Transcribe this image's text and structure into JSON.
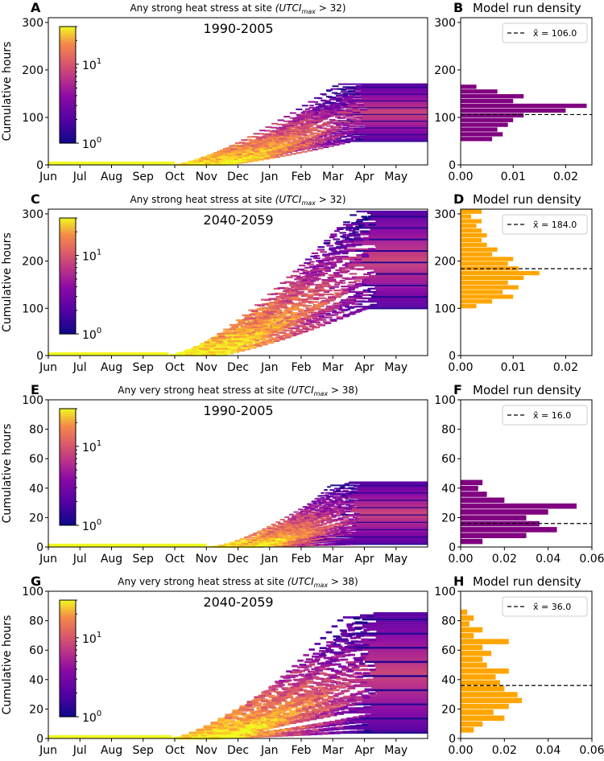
{
  "chart_data": [
    {
      "type": "heatmap",
      "panel": "A",
      "title": "Any strong heat stress at site",
      "title_math": "(UTCI",
      "title_sub": "max",
      "title_tail": " > 32)",
      "period": "1990-2005",
      "ylabel": "Cumulative hours",
      "xlabel": "",
      "ylim": [
        0,
        310
      ],
      "yticks": [
        0,
        100,
        200,
        300
      ],
      "months": [
        "Jun",
        "Jul",
        "Aug",
        "Sep",
        "Oct",
        "Nov",
        "Dec",
        "Jan",
        "Feb",
        "Mar",
        "Apr",
        "May"
      ],
      "colorbar": {
        "scale": "log",
        "ticks": [
          "10",
          "10"
        ],
        "exponents": [
          "0",
          "1"
        ],
        "range": [
          1,
          30
        ]
      },
      "onset_month": 4.0,
      "plateau_month": 9.5,
      "final_range": [
        50,
        170
      ]
    },
    {
      "type": "bar",
      "panel": "B",
      "title": "Model run density",
      "color": "#800080",
      "legend": "x̃ = 106.0",
      "median": 106.0,
      "ylim": [
        0,
        310
      ],
      "yticks": [
        0,
        100,
        200,
        300
      ],
      "xlim": [
        0,
        0.025
      ],
      "xticks": [
        0,
        0.01,
        0.02
      ],
      "xticklabels": [
        "0.00",
        "0.01",
        "0.02"
      ],
      "bins": [
        50,
        60,
        70,
        80,
        90,
        100,
        110,
        120,
        130,
        140,
        150,
        160
      ],
      "values": [
        0.006,
        0.008,
        0.007,
        0.009,
        0.01,
        0.012,
        0.02,
        0.024,
        0.01,
        0.012,
        0.007,
        0.003
      ]
    },
    {
      "type": "heatmap",
      "panel": "C",
      "title": "Any strong heat stress at site",
      "title_math": "(UTCI",
      "title_sub": "max",
      "title_tail": " > 32)",
      "period": "2040-2059",
      "ylabel": "Cumulative hours",
      "xlabel": "",
      "ylim": [
        0,
        310
      ],
      "yticks": [
        0,
        100,
        200,
        300
      ],
      "months": [
        "Jun",
        "Jul",
        "Aug",
        "Sep",
        "Oct",
        "Nov",
        "Dec",
        "Jan",
        "Feb",
        "Mar",
        "Apr",
        "May"
      ],
      "colorbar": {
        "scale": "log",
        "ticks": [
          "10",
          "10"
        ],
        "exponents": [
          "0",
          "1"
        ],
        "range": [
          1,
          30
        ]
      },
      "onset_month": 3.8,
      "plateau_month": 9.8,
      "final_range": [
        100,
        305
      ]
    },
    {
      "type": "bar",
      "panel": "D",
      "title": "Model run density",
      "color": "#ffa500",
      "legend": "x̃ = 184.0",
      "median": 184.0,
      "ylim": [
        0,
        310
      ],
      "yticks": [
        0,
        100,
        200,
        300
      ],
      "xlim": [
        0,
        0.025
      ],
      "xticks": [
        0,
        0.01,
        0.02
      ],
      "xticklabels": [
        "0.00",
        "0.01",
        "0.02"
      ],
      "bins": [
        100,
        110,
        120,
        130,
        140,
        150,
        160,
        170,
        180,
        190,
        200,
        210,
        220,
        230,
        240,
        250,
        260,
        270,
        280,
        290,
        300
      ],
      "values": [
        0.003,
        0.006,
        0.01,
        0.008,
        0.011,
        0.009,
        0.012,
        0.015,
        0.011,
        0.009,
        0.01,
        0.006,
        0.007,
        0.005,
        0.004,
        0.005,
        0.004,
        0.003,
        0.004,
        0.002,
        0.004
      ]
    },
    {
      "type": "heatmap",
      "panel": "E",
      "title": "Any very strong heat stress at site",
      "title_math": "(UTCI",
      "title_sub": "max",
      "title_tail": " > 38)",
      "period": "1990-2005",
      "ylabel": "Cumulative hours",
      "xlabel": "",
      "ylim": [
        0,
        100
      ],
      "yticks": [
        0,
        20,
        40,
        60,
        80,
        100
      ],
      "months": [
        "Jun",
        "Jul",
        "Aug",
        "Sep",
        "Oct",
        "Nov",
        "Dec",
        "Jan",
        "Feb",
        "Mar",
        "Apr",
        "May"
      ],
      "colorbar": {
        "scale": "log",
        "ticks": [
          "10",
          "10"
        ],
        "exponents": [
          "0",
          "1"
        ],
        "range": [
          1,
          30
        ]
      },
      "onset_month": 5.0,
      "plateau_month": 9.3,
      "final_range": [
        2,
        44
      ]
    },
    {
      "type": "bar",
      "panel": "F",
      "title": "Model run density",
      "color": "#800080",
      "legend": "x̃ = 16.0",
      "median": 16.0,
      "ylim": [
        0,
        100
      ],
      "yticks": [
        0,
        20,
        40,
        60,
        80,
        100
      ],
      "xlim": [
        0,
        0.06
      ],
      "xticks": [
        0,
        0.02,
        0.04,
        0.06
      ],
      "xticklabels": [
        "0.00",
        "0.02",
        "0.04",
        "0.06"
      ],
      "bins": [
        2,
        6,
        10,
        14,
        18,
        22,
        26,
        30,
        34,
        38,
        42
      ],
      "values": [
        0.01,
        0.03,
        0.044,
        0.036,
        0.03,
        0.04,
        0.053,
        0.02,
        0.012,
        0.008,
        0.01
      ]
    },
    {
      "type": "heatmap",
      "panel": "G",
      "title": "Any very strong heat stress at site",
      "title_math": "(UTCI",
      "title_sub": "max",
      "title_tail": " > 38)",
      "period": "2040-2059",
      "ylabel": "Cumulative hours",
      "xlabel": "",
      "ylim": [
        0,
        100
      ],
      "yticks": [
        0,
        20,
        40,
        60,
        80,
        100
      ],
      "months": [
        "Jun",
        "Jul",
        "Aug",
        "Sep",
        "Oct",
        "Nov",
        "Dec",
        "Jan",
        "Feb",
        "Mar",
        "Apr",
        "May"
      ],
      "colorbar": {
        "scale": "log",
        "ticks": [
          "10",
          "10"
        ],
        "exponents": [
          "0",
          "1"
        ],
        "range": [
          1,
          30
        ]
      },
      "onset_month": 3.9,
      "plateau_month": 9.8,
      "final_range": [
        4,
        85
      ]
    },
    {
      "type": "bar",
      "panel": "H",
      "title": "Model run density",
      "color": "#ffa500",
      "legend": "x̃ = 36.0",
      "median": 36.0,
      "ylim": [
        0,
        100
      ],
      "yticks": [
        0,
        20,
        40,
        60,
        80,
        100
      ],
      "xlim": [
        0,
        0.06
      ],
      "xticks": [
        0,
        0.02,
        0.04,
        0.06
      ],
      "xticklabels": [
        "0.00",
        "0.02",
        "0.04",
        "0.06"
      ],
      "bins": [
        4,
        8,
        12,
        16,
        20,
        24,
        28,
        32,
        36,
        40,
        44,
        48,
        52,
        56,
        60,
        64,
        68,
        72,
        76,
        80,
        84
      ],
      "values": [
        0.006,
        0.01,
        0.02,
        0.015,
        0.022,
        0.028,
        0.026,
        0.02,
        0.018,
        0.016,
        0.022,
        0.012,
        0.01,
        0.014,
        0.01,
        0.022,
        0.006,
        0.01,
        0.004,
        0.006,
        0.003
      ]
    }
  ]
}
